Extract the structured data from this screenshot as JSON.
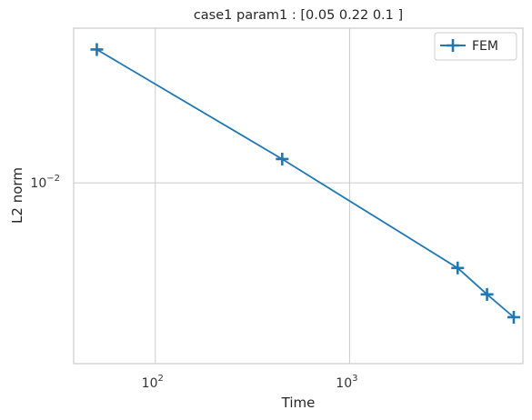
{
  "chart_data": {
    "type": "line",
    "title": "case1 param1 : [0.05 0.22 0.1 ]",
    "xlabel": "Time",
    "ylabel": "L2 norm",
    "xscale": "log",
    "yscale": "log",
    "xlim": [
      38,
      7800
    ],
    "ylim": [
      0.0052,
      0.0175
    ],
    "x_ticks": [
      {
        "value": 100,
        "base": "10",
        "exp": "2"
      },
      {
        "value": 1000,
        "base": "10",
        "exp": "3"
      }
    ],
    "y_ticks": [
      {
        "value": 0.01,
        "base": "10",
        "exp": "−2"
      }
    ],
    "grid": true,
    "legend_position": "top-right",
    "series": [
      {
        "name": "FEM",
        "color": "#1f77b4",
        "marker": "plus",
        "x": [
          50,
          450,
          3600,
          5100,
          7000
        ],
        "y": [
          0.0162,
          0.0109,
          0.00735,
          0.00668,
          0.00615
        ]
      }
    ]
  }
}
